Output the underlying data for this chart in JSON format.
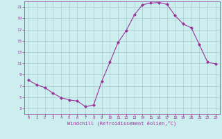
{
  "x": [
    0,
    1,
    2,
    3,
    4,
    5,
    6,
    7,
    8,
    9,
    10,
    11,
    12,
    13,
    14,
    15,
    16,
    17,
    18,
    19,
    20,
    21,
    22,
    23
  ],
  "y": [
    8.0,
    7.2,
    6.7,
    5.7,
    4.9,
    4.5,
    4.3,
    3.3,
    3.6,
    7.8,
    11.2,
    14.7,
    16.8,
    19.6,
    21.4,
    21.7,
    21.8,
    21.5,
    19.5,
    18.0,
    17.3,
    14.3,
    11.2,
    10.9
  ],
  "line_color": "#993399",
  "marker": "D",
  "marker_size": 2,
  "bg_color": "#cceeee",
  "grid_color": "#aacccc",
  "xlabel": "Windchill (Refroidissement éolien,°C)",
  "xlabel_color": "#993399",
  "tick_color": "#993399",
  "ylim": [
    2,
    22
  ],
  "xlim": [
    -0.5,
    23.5
  ],
  "yticks": [
    3,
    5,
    7,
    9,
    11,
    13,
    15,
    17,
    19,
    21
  ],
  "xticks": [
    0,
    1,
    2,
    3,
    4,
    5,
    6,
    7,
    8,
    9,
    10,
    11,
    12,
    13,
    14,
    15,
    16,
    17,
    18,
    19,
    20,
    21,
    22,
    23
  ]
}
